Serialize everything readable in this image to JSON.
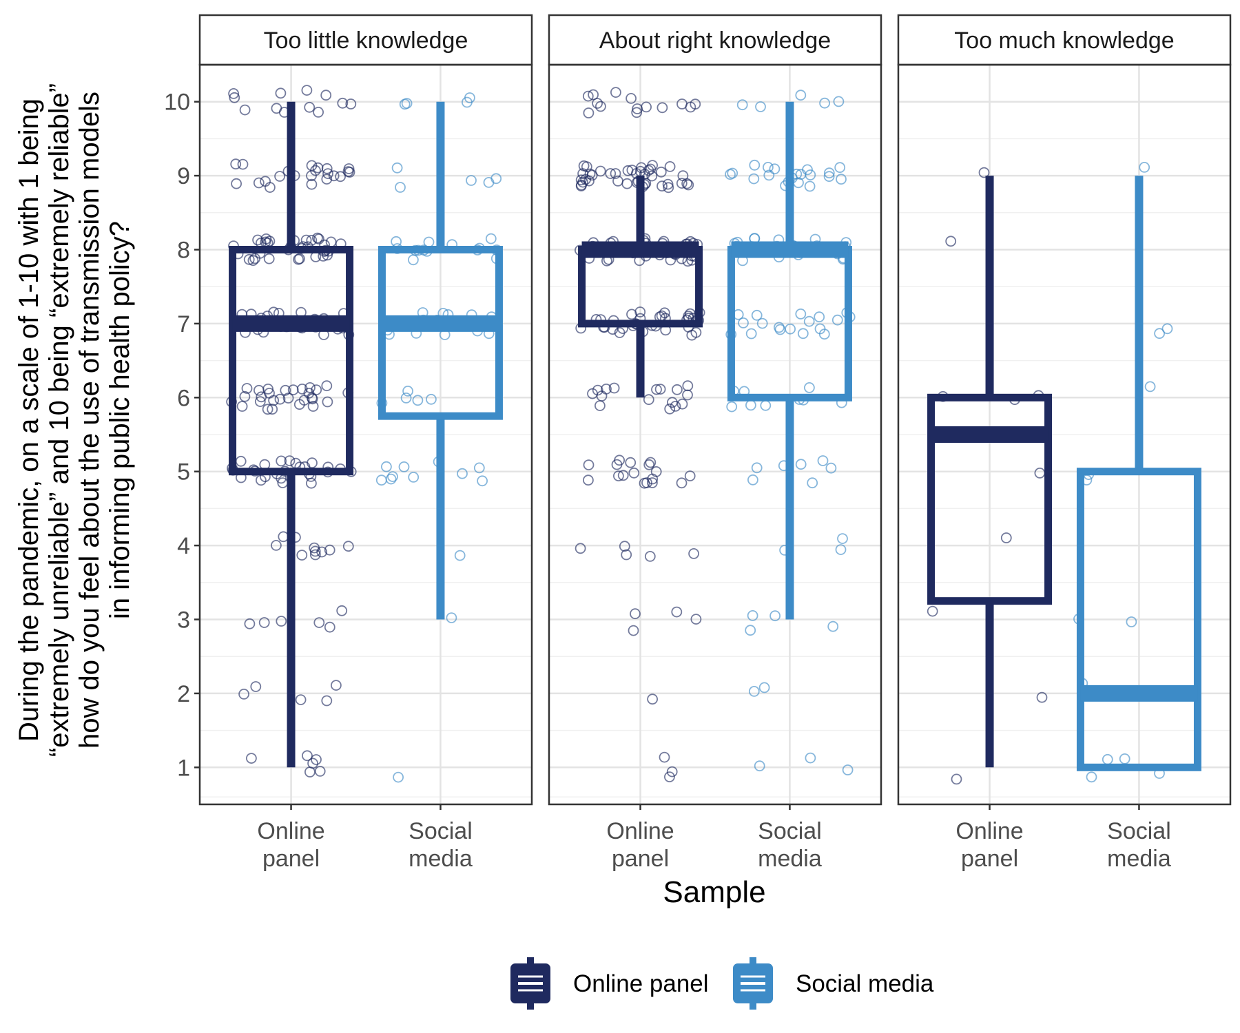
{
  "chart_data": {
    "type": "boxplot",
    "xlabel": "Sample",
    "ylabel_lines": [
      "During the pandemic, on a scale of 1-10 with 1 being",
      "“extremely unreliable” and 10 being “extremely reliable”",
      "how do you feel about the use of transmission models",
      "in informing public health policy?"
    ],
    "ylim": [
      0.5,
      10.5
    ],
    "y_ticks": [
      "1",
      "2",
      "3",
      "4",
      "5",
      "6",
      "7",
      "8",
      "9",
      "10"
    ],
    "category_labels": [
      [
        "Online",
        "panel"
      ],
      [
        "Social",
        "media"
      ]
    ],
    "legend": [
      {
        "name": "Online panel",
        "color": "#1f2a5f"
      },
      {
        "name": "Social media",
        "color": "#3d8bc7"
      }
    ],
    "facets": [
      {
        "title": "Too little knowledge",
        "boxes": [
          {
            "group": "Online panel",
            "min": 1,
            "q1": 5,
            "median": 7,
            "q3": 8,
            "max": 10
          },
          {
            "group": "Social media",
            "min": 3,
            "q1": 5.75,
            "median": 7,
            "q3": 8,
            "max": 10
          }
        ],
        "points": {
          "Online panel": [
            [
              1,
              6
            ],
            [
              2,
              5
            ],
            [
              3,
              6
            ],
            [
              4,
              10
            ],
            [
              5,
              26
            ],
            [
              6,
              28
            ],
            [
              7,
              30
            ],
            [
              8,
              34
            ],
            [
              9,
              22
            ],
            [
              10,
              12
            ]
          ],
          "Social media": [
            [
              1,
              1
            ],
            [
              3,
              1
            ],
            [
              4,
              1
            ],
            [
              5,
              10
            ],
            [
              6,
              5
            ],
            [
              7,
              14
            ],
            [
              8,
              14
            ],
            [
              9,
              5
            ],
            [
              10,
              4
            ]
          ]
        }
      },
      {
        "title": "About right knowledge",
        "boxes": [
          {
            "group": "Online panel",
            "min": 6,
            "q1": 7,
            "median": 8,
            "q3": 8,
            "max": 9
          },
          {
            "group": "Social media",
            "min": 3,
            "q1": 6,
            "median": 8,
            "q3": 8,
            "max": 10
          }
        ],
        "points": {
          "Online panel": [
            [
              1,
              3
            ],
            [
              2,
              1
            ],
            [
              3,
              4
            ],
            [
              4,
              5
            ],
            [
              5,
              17
            ],
            [
              6,
              16
            ],
            [
              7,
              34
            ],
            [
              8,
              42
            ],
            [
              9,
              40
            ],
            [
              10,
              14
            ]
          ],
          "Social media": [
            [
              1,
              3
            ],
            [
              2,
              2
            ],
            [
              3,
              4
            ],
            [
              4,
              3
            ],
            [
              5,
              7
            ],
            [
              6,
              9
            ],
            [
              7,
              18
            ],
            [
              8,
              28
            ],
            [
              9,
              20
            ],
            [
              10,
              5
            ]
          ]
        }
      },
      {
        "title": "Too much knowledge",
        "boxes": [
          {
            "group": "Online panel",
            "min": 1,
            "q1": 3.25,
            "median": 5.5,
            "q3": 6,
            "max": 9
          },
          {
            "group": "Social media",
            "min": 1,
            "q1": 1,
            "median": 2,
            "q3": 5,
            "max": 9
          }
        ],
        "points": {
          "Online panel": [
            [
              1,
              1
            ],
            [
              2,
              1
            ],
            [
              3,
              1
            ],
            [
              4,
              1
            ],
            [
              5,
              1
            ],
            [
              6,
              3
            ],
            [
              8,
              1
            ],
            [
              9,
              1
            ]
          ],
          "Social media": [
            [
              1,
              4
            ],
            [
              2,
              1
            ],
            [
              3,
              2
            ],
            [
              5,
              2
            ],
            [
              6,
              1
            ],
            [
              7,
              2
            ],
            [
              9,
              1
            ]
          ]
        }
      }
    ],
    "grid": true
  }
}
